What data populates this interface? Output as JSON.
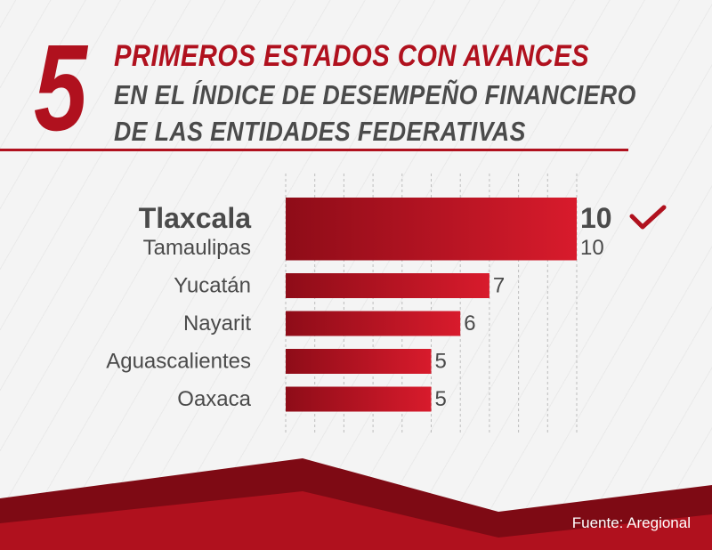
{
  "header": {
    "number": "5",
    "line1": "PRIMEROS ESTADOS CON AVANCES",
    "line2": "EN EL ÍNDICE DE DESEMPEÑO FINANCIERO",
    "line3": "DE LAS ENTIDADES FEDERATIVAS"
  },
  "colors": {
    "accent": "#b0111e",
    "bar_dark": "#8e0c18",
    "bar_light": "#d81b2c",
    "text": "#4a4a4a",
    "background": "#f4f4f4"
  },
  "chart_data": {
    "type": "bar",
    "orientation": "horizontal",
    "categories": [
      "Tlaxcala",
      "Tamaulipas",
      "Yucatán",
      "Nayarit",
      "Aguascalientes",
      "Oaxaca"
    ],
    "values": [
      10,
      10,
      7,
      6,
      5,
      5
    ],
    "value_labels": [
      "10",
      "10",
      "7",
      "6",
      "5",
      "5"
    ],
    "highlight_index": 0,
    "highlight_icon": "check-icon",
    "xlim": [
      0,
      10
    ],
    "grid": true
  },
  "footer": {
    "source": "Fuente: Aregional"
  }
}
